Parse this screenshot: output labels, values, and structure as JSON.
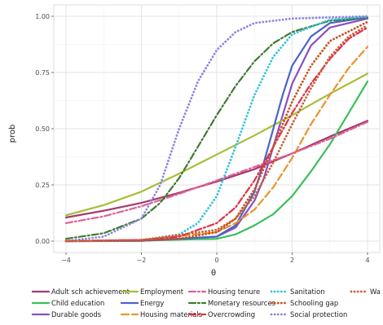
{
  "chart_data": {
    "type": "line",
    "xlabel": "θ",
    "ylabel": "prob",
    "xlim": [
      -4,
      4
    ],
    "ylim": [
      0,
      1
    ],
    "x_ticks": [
      -4,
      -2,
      0,
      2,
      4
    ],
    "y_ticks": [
      "0.00",
      "0.25",
      "0.50",
      "0.75",
      "1.00"
    ],
    "grid": true,
    "legend_position": "bottom",
    "series": [
      {
        "name": "Adult sch achievement",
        "color": "#a33a6a",
        "dash": "solid",
        "values": [
          [
            -4,
            0.105
          ],
          [
            -3,
            0.135
          ],
          [
            -2,
            0.17
          ],
          [
            -1,
            0.215
          ],
          [
            0,
            0.265
          ],
          [
            1,
            0.32
          ],
          [
            2,
            0.39
          ],
          [
            3,
            0.465
          ],
          [
            4,
            0.535
          ]
        ]
      },
      {
        "name": "Child education",
        "color": "#3bbf5a",
        "dash": "solid",
        "values": [
          [
            -4,
            0.0
          ],
          [
            -2,
            0.002
          ],
          [
            0,
            0.01
          ],
          [
            0.5,
            0.03
          ],
          [
            1,
            0.07
          ],
          [
            1.5,
            0.12
          ],
          [
            2,
            0.2
          ],
          [
            2.5,
            0.31
          ],
          [
            3,
            0.43
          ],
          [
            3.5,
            0.57
          ],
          [
            4,
            0.71
          ]
        ]
      },
      {
        "name": "Durable goods",
        "color": "#8a4fc0",
        "dash": "solid",
        "values": [
          [
            -4,
            0.0
          ],
          [
            -2,
            0.001
          ],
          [
            0,
            0.02
          ],
          [
            0.5,
            0.06
          ],
          [
            1,
            0.18
          ],
          [
            1.25,
            0.28
          ],
          [
            1.5,
            0.42
          ],
          [
            1.75,
            0.56
          ],
          [
            2,
            0.7
          ],
          [
            2.5,
            0.87
          ],
          [
            3,
            0.95
          ],
          [
            4,
            0.99
          ]
        ]
      },
      {
        "name": "Employment",
        "color": "#a8bd3a",
        "dash": "solid",
        "values": [
          [
            -4,
            0.115
          ],
          [
            -3,
            0.16
          ],
          [
            -2,
            0.22
          ],
          [
            -1,
            0.3
          ],
          [
            0,
            0.385
          ],
          [
            1,
            0.47
          ],
          [
            2,
            0.56
          ],
          [
            3,
            0.655
          ],
          [
            4,
            0.745
          ]
        ]
      },
      {
        "name": "Energy",
        "color": "#4a63c8",
        "dash": "solid",
        "values": [
          [
            -4,
            0.0
          ],
          [
            -2,
            0.001
          ],
          [
            0,
            0.02
          ],
          [
            0.5,
            0.07
          ],
          [
            1,
            0.22
          ],
          [
            1.25,
            0.35
          ],
          [
            1.5,
            0.5
          ],
          [
            1.75,
            0.65
          ],
          [
            2,
            0.78
          ],
          [
            2.5,
            0.91
          ],
          [
            3,
            0.97
          ],
          [
            4,
            0.995
          ]
        ]
      },
      {
        "name": "Housing materials",
        "color": "#e8952c",
        "dash": "longdash",
        "values": [
          [
            -4,
            0.0
          ],
          [
            -2,
            0.005
          ],
          [
            0,
            0.04
          ],
          [
            0.5,
            0.08
          ],
          [
            1,
            0.14
          ],
          [
            1.5,
            0.24
          ],
          [
            2,
            0.37
          ],
          [
            2.5,
            0.52
          ],
          [
            3,
            0.65
          ],
          [
            3.5,
            0.77
          ],
          [
            4,
            0.865
          ]
        ]
      },
      {
        "name": "Housing tenure",
        "color": "#e0609a",
        "dash": "dashdot",
        "values": [
          [
            -4,
            0.08
          ],
          [
            -3,
            0.11
          ],
          [
            -2,
            0.155
          ],
          [
            -1,
            0.21
          ],
          [
            0,
            0.27
          ],
          [
            1,
            0.33
          ],
          [
            2,
            0.39
          ],
          [
            3,
            0.455
          ],
          [
            4,
            0.53
          ]
        ]
      },
      {
        "name": "Monetary resources",
        "color": "#3e7a30",
        "dash": "dashdot",
        "values": [
          [
            -4,
            0.01
          ],
          [
            -3,
            0.035
          ],
          [
            -2,
            0.1
          ],
          [
            -1.5,
            0.17
          ],
          [
            -1,
            0.28
          ],
          [
            -0.5,
            0.42
          ],
          [
            0,
            0.56
          ],
          [
            0.5,
            0.69
          ],
          [
            1,
            0.8
          ],
          [
            1.5,
            0.88
          ],
          [
            2,
            0.93
          ],
          [
            3,
            0.98
          ],
          [
            4,
            0.995
          ]
        ]
      },
      {
        "name": "Overcrowding",
        "color": "#e0304a",
        "dash": "dashdot",
        "values": [
          [
            -4,
            0.0
          ],
          [
            -2,
            0.005
          ],
          [
            -1,
            0.02
          ],
          [
            0,
            0.08
          ],
          [
            0.5,
            0.15
          ],
          [
            1,
            0.27
          ],
          [
            1.5,
            0.42
          ],
          [
            2,
            0.57
          ],
          [
            2.5,
            0.7
          ],
          [
            3,
            0.81
          ],
          [
            3.5,
            0.9
          ],
          [
            4,
            0.95
          ]
        ]
      },
      {
        "name": "Sanitation",
        "color": "#35c4d8",
        "dash": "dotted",
        "values": [
          [
            -4,
            0.0
          ],
          [
            -2,
            0.003
          ],
          [
            -1,
            0.03
          ],
          [
            -0.5,
            0.08
          ],
          [
            0,
            0.2
          ],
          [
            0.5,
            0.42
          ],
          [
            1,
            0.65
          ],
          [
            1.5,
            0.82
          ],
          [
            2,
            0.92
          ],
          [
            3,
            0.985
          ],
          [
            4,
            0.998
          ]
        ]
      },
      {
        "name": "Schooling gap",
        "color": "#c8501c",
        "dash": "dotted",
        "values": [
          [
            -4,
            0.0
          ],
          [
            -2,
            0.002
          ],
          [
            -1,
            0.01
          ],
          [
            0,
            0.04
          ],
          [
            0.5,
            0.1
          ],
          [
            1,
            0.23
          ],
          [
            1.5,
            0.42
          ],
          [
            2,
            0.62
          ],
          [
            2.5,
            0.78
          ],
          [
            3,
            0.89
          ],
          [
            4,
            0.975
          ]
        ]
      },
      {
        "name": "Social protection",
        "color": "#8d86e0",
        "dash": "dotted",
        "values": [
          [
            -4,
            0.0
          ],
          [
            -3,
            0.02
          ],
          [
            -2,
            0.1
          ],
          [
            -1.5,
            0.25
          ],
          [
            -1,
            0.5
          ],
          [
            -0.5,
            0.71
          ],
          [
            0,
            0.85
          ],
          [
            0.5,
            0.93
          ],
          [
            1,
            0.97
          ],
          [
            2,
            0.99
          ],
          [
            4,
            1.0
          ]
        ]
      },
      {
        "name": "Wa",
        "color": "#c8603a",
        "dash": "dotted",
        "values": [
          [
            -4,
            0.0
          ],
          [
            -2,
            0.005
          ],
          [
            0,
            0.05
          ],
          [
            0.5,
            0.1
          ],
          [
            1,
            0.2
          ],
          [
            1.5,
            0.35
          ],
          [
            2,
            0.52
          ],
          [
            2.5,
            0.68
          ],
          [
            3,
            0.82
          ],
          [
            3.5,
            0.91
          ],
          [
            4,
            0.96
          ]
        ]
      }
    ]
  }
}
